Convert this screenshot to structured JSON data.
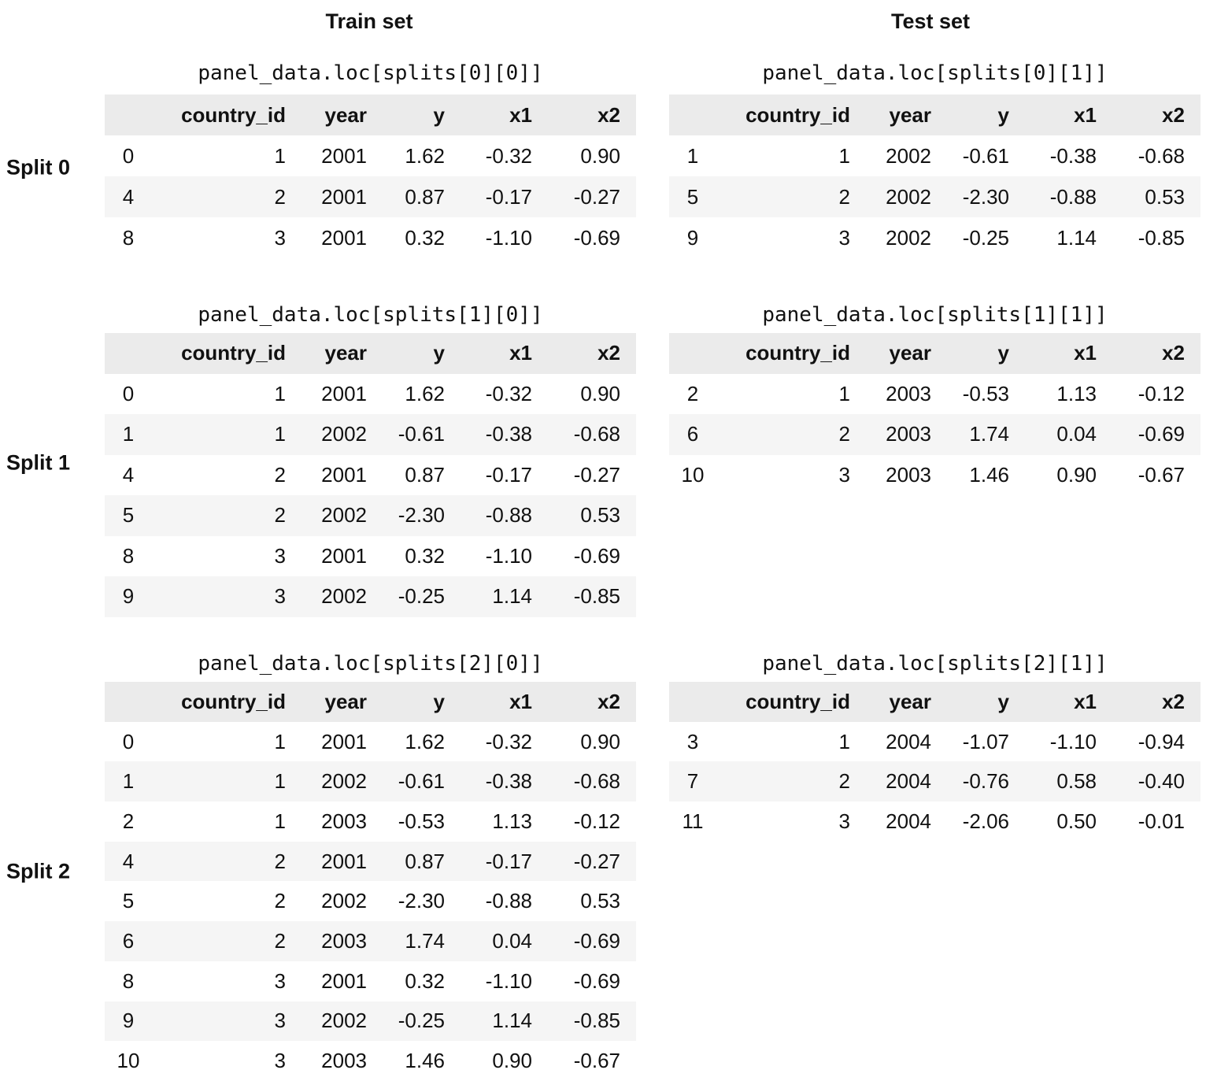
{
  "column_headers": [
    "Train set",
    "Test set"
  ],
  "splits": [
    {
      "label": "Split 0",
      "train": {
        "caption": "panel_data.loc[splits[0][0]]",
        "columns": [
          "country_id",
          "year",
          "y",
          "x1",
          "x2"
        ],
        "rows": [
          [
            "0",
            "1",
            "2001",
            "1.62",
            "-0.32",
            "0.90"
          ],
          [
            "4",
            "2",
            "2001",
            "0.87",
            "-0.17",
            "-0.27"
          ],
          [
            "8",
            "3",
            "2001",
            "0.32",
            "-1.10",
            "-0.69"
          ]
        ]
      },
      "test": {
        "caption": "panel_data.loc[splits[0][1]]",
        "columns": [
          "country_id",
          "year",
          "y",
          "x1",
          "x2"
        ],
        "rows": [
          [
            "1",
            "1",
            "2002",
            "-0.61",
            "-0.38",
            "-0.68"
          ],
          [
            "5",
            "2",
            "2002",
            "-2.30",
            "-0.88",
            "0.53"
          ],
          [
            "9",
            "3",
            "2002",
            "-0.25",
            "1.14",
            "-0.85"
          ]
        ]
      }
    },
    {
      "label": "Split 1",
      "train": {
        "caption": "panel_data.loc[splits[1][0]]",
        "columns": [
          "country_id",
          "year",
          "y",
          "x1",
          "x2"
        ],
        "rows": [
          [
            "0",
            "1",
            "2001",
            "1.62",
            "-0.32",
            "0.90"
          ],
          [
            "1",
            "1",
            "2002",
            "-0.61",
            "-0.38",
            "-0.68"
          ],
          [
            "4",
            "2",
            "2001",
            "0.87",
            "-0.17",
            "-0.27"
          ],
          [
            "5",
            "2",
            "2002",
            "-2.30",
            "-0.88",
            "0.53"
          ],
          [
            "8",
            "3",
            "2001",
            "0.32",
            "-1.10",
            "-0.69"
          ],
          [
            "9",
            "3",
            "2002",
            "-0.25",
            "1.14",
            "-0.85"
          ]
        ]
      },
      "test": {
        "caption": "panel_data.loc[splits[1][1]]",
        "columns": [
          "country_id",
          "year",
          "y",
          "x1",
          "x2"
        ],
        "rows": [
          [
            "2",
            "1",
            "2003",
            "-0.53",
            "1.13",
            "-0.12"
          ],
          [
            "6",
            "2",
            "2003",
            "1.74",
            "0.04",
            "-0.69"
          ],
          [
            "10",
            "3",
            "2003",
            "1.46",
            "0.90",
            "-0.67"
          ]
        ]
      }
    },
    {
      "label": "Split 2",
      "train": {
        "caption": "panel_data.loc[splits[2][0]]",
        "columns": [
          "country_id",
          "year",
          "y",
          "x1",
          "x2"
        ],
        "rows": [
          [
            "0",
            "1",
            "2001",
            "1.62",
            "-0.32",
            "0.90"
          ],
          [
            "1",
            "1",
            "2002",
            "-0.61",
            "-0.38",
            "-0.68"
          ],
          [
            "2",
            "1",
            "2003",
            "-0.53",
            "1.13",
            "-0.12"
          ],
          [
            "4",
            "2",
            "2001",
            "0.87",
            "-0.17",
            "-0.27"
          ],
          [
            "5",
            "2",
            "2002",
            "-2.30",
            "-0.88",
            "0.53"
          ],
          [
            "6",
            "2",
            "2003",
            "1.74",
            "0.04",
            "-0.69"
          ],
          [
            "8",
            "3",
            "2001",
            "0.32",
            "-1.10",
            "-0.69"
          ],
          [
            "9",
            "3",
            "2002",
            "-0.25",
            "1.14",
            "-0.85"
          ],
          [
            "10",
            "3",
            "2003",
            "1.46",
            "0.90",
            "-0.67"
          ]
        ]
      },
      "test": {
        "caption": "panel_data.loc[splits[2][1]]",
        "columns": [
          "country_id",
          "year",
          "y",
          "x1",
          "x2"
        ],
        "rows": [
          [
            "3",
            "1",
            "2004",
            "-1.07",
            "-1.10",
            "-0.94"
          ],
          [
            "7",
            "2",
            "2004",
            "-0.76",
            "0.58",
            "-0.40"
          ],
          [
            "11",
            "3",
            "2004",
            "-2.06",
            "0.50",
            "-0.01"
          ]
        ]
      }
    }
  ]
}
